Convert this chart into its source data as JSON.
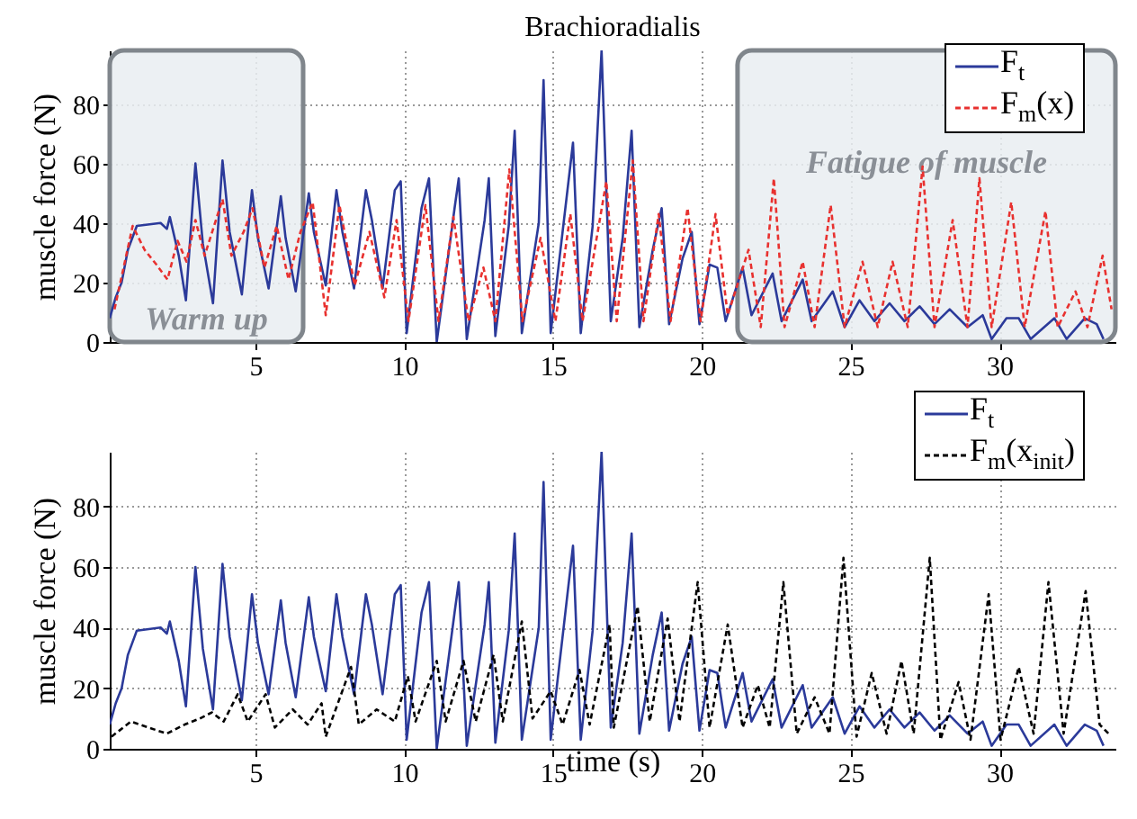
{
  "chart_data": [
    {
      "type": "line",
      "title": "Brachioradialis",
      "ylabel": "muscle force (N)",
      "xlim": [
        0.1,
        33.9
      ],
      "ylim": [
        0,
        98
      ],
      "xticks": [
        5,
        10,
        15,
        20,
        25,
        30
      ],
      "yticks": [
        0,
        20,
        40,
        60,
        80
      ],
      "grid": true,
      "legend": "top right",
      "bands": [
        {
          "axis": "x",
          "from": 0.1,
          "to": 6.6,
          "label": "Warm up",
          "color": "#e9edf1"
        },
        {
          "axis": "x",
          "from": 21.2,
          "to": 33.9,
          "label": "Fatigue of muscle",
          "color": "#e9edf1"
        }
      ],
      "series": [
        {
          "name": "F$_{t}$",
          "color": "#2b3a9a",
          "line_style": "solid",
          "x": [
            0.1,
            0.3,
            0.5,
            0.71,
            1.01,
            1.81,
            2.02,
            2.12,
            2.42,
            2.66,
            2.98,
            3.23,
            3.57,
            3.89,
            4.13,
            4.54,
            4.88,
            5.08,
            5.44,
            5.85,
            6.01,
            6.35,
            6.79,
            6.96,
            7.36,
            7.72,
            7.92,
            8.31,
            8.71,
            8.91,
            9.27,
            9.68,
            9.88,
            10.08,
            10.58,
            10.83,
            11.09,
            11.69,
            11.83,
            12.1,
            12.7,
            12.84,
            13.06,
            13.51,
            13.71,
            13.95,
            14.52,
            14.68,
            14.92,
            15.32,
            15.67,
            15.93,
            16.33,
            16.63,
            16.94,
            17.34,
            17.64,
            17.9,
            18.35,
            18.65,
            18.9,
            19.35,
            19.66,
            19.92,
            20.26,
            20.52,
            20.8,
            21.37,
            21.67,
            22.38,
            22.68,
            23.39,
            23.69,
            24.4,
            24.8,
            25.3,
            25.8,
            26.31,
            26.81,
            27.32,
            27.82,
            28.33,
            28.93,
            29.44,
            29.74,
            30.24,
            30.65,
            31.05,
            31.85,
            32.26,
            32.87,
            33.27,
            33.5
          ],
          "values": [
            8,
            15,
            20,
            31,
            39,
            40,
            38,
            42,
            29,
            14,
            60,
            33,
            13,
            61,
            37,
            16,
            51,
            35,
            18,
            49,
            35,
            17,
            50,
            37,
            19,
            51,
            37,
            18,
            51,
            41,
            18,
            51,
            54,
            3,
            45,
            55,
            0,
            45,
            55,
            1,
            41,
            55,
            2,
            39,
            71,
            3,
            40,
            88,
            3,
            37,
            67,
            3,
            39,
            98,
            7,
            35,
            71,
            5,
            31,
            45,
            6,
            28,
            37,
            6,
            26,
            25,
            7,
            25,
            9,
            23,
            7,
            21,
            7,
            17,
            5,
            14,
            7,
            13,
            7,
            12,
            6,
            11,
            5,
            9,
            1,
            8,
            8,
            1,
            8,
            1,
            8,
            6,
            1
          ]
        },
        {
          "name": "F$_{m}$(x)",
          "color": "#e8312f",
          "line_style": "dashed",
          "x": [
            0.26,
            0.87,
            1.27,
            1.67,
            2.04,
            2.38,
            2.68,
            2.98,
            3.29,
            3.89,
            4.19,
            4.6,
            4.9,
            5.3,
            5.71,
            6.11,
            6.51,
            6.92,
            7.36,
            7.82,
            8.33,
            8.83,
            9.33,
            9.74,
            10.14,
            10.71,
            11.15,
            11.65,
            12.16,
            12.66,
            13.06,
            13.53,
            13.97,
            14.58,
            15.08,
            15.58,
            15.99,
            16.79,
            17.14,
            17.68,
            18.04,
            18.55,
            18.95,
            19.52,
            19.96,
            20.46,
            20.87,
            21.57,
            21.98,
            22.42,
            22.78,
            23.39,
            23.79,
            24.33,
            24.8,
            25.4,
            25.91,
            26.41,
            26.92,
            27.42,
            27.82,
            28.43,
            28.93,
            29.33,
            29.74,
            30.4,
            30.85,
            31.55,
            31.96,
            32.56,
            32.96,
            33.47,
            33.77
          ],
          "values": [
            11,
            39,
            31,
            26,
            21,
            34,
            27,
            41,
            29,
            48,
            29,
            37,
            45,
            25,
            39,
            21,
            37,
            47,
            9,
            46,
            19,
            37,
            15,
            41,
            7,
            46,
            7,
            42,
            7,
            25,
            7,
            58,
            7,
            35,
            7,
            43,
            7,
            54,
            7,
            61,
            7,
            43,
            7,
            45,
            7,
            43,
            9,
            31,
            5,
            55,
            5,
            27,
            5,
            46,
            5,
            27,
            5,
            27,
            5,
            59,
            5,
            41,
            5,
            55,
            5,
            47,
            5,
            44,
            5,
            17,
            5,
            29,
            11
          ]
        }
      ]
    },
    {
      "type": "line",
      "xlabel": "time (s)",
      "ylabel": "muscle force (N)",
      "xlim": [
        0.1,
        33.9
      ],
      "ylim": [
        0,
        98
      ],
      "xticks": [
        5,
        10,
        15,
        20,
        25,
        30
      ],
      "yticks": [
        0,
        20,
        40,
        60,
        80
      ],
      "grid": true,
      "legend": "top right",
      "series": [
        {
          "name": "F$_{t}$",
          "color": "#2b3a9a",
          "line_style": "solid",
          "x": [
            0.1,
            0.3,
            0.5,
            0.71,
            1.01,
            1.81,
            2.02,
            2.12,
            2.42,
            2.66,
            2.98,
            3.23,
            3.57,
            3.89,
            4.13,
            4.54,
            4.88,
            5.08,
            5.44,
            5.85,
            6.01,
            6.35,
            6.79,
            6.96,
            7.36,
            7.72,
            7.92,
            8.31,
            8.71,
            8.91,
            9.27,
            9.68,
            9.88,
            10.08,
            10.58,
            10.83,
            11.09,
            11.69,
            11.83,
            12.1,
            12.7,
            12.84,
            13.06,
            13.51,
            13.71,
            13.95,
            14.52,
            14.68,
            14.92,
            15.32,
            15.67,
            15.93,
            16.33,
            16.63,
            16.94,
            17.34,
            17.64,
            17.9,
            18.35,
            18.65,
            18.9,
            19.35,
            19.66,
            19.92,
            20.26,
            20.52,
            20.8,
            21.37,
            21.67,
            22.38,
            22.68,
            23.39,
            23.69,
            24.4,
            24.8,
            25.3,
            25.8,
            26.31,
            26.81,
            27.32,
            27.82,
            28.33,
            28.93,
            29.44,
            29.74,
            30.24,
            30.65,
            31.05,
            31.85,
            32.26,
            32.87,
            33.27,
            33.5
          ],
          "values": [
            8,
            15,
            20,
            31,
            39,
            40,
            38,
            42,
            29,
            14,
            60,
            33,
            13,
            61,
            37,
            16,
            51,
            35,
            18,
            49,
            35,
            17,
            50,
            37,
            19,
            51,
            37,
            18,
            51,
            41,
            18,
            51,
            54,
            3,
            45,
            55,
            0,
            45,
            55,
            1,
            41,
            55,
            2,
            39,
            71,
            3,
            40,
            88,
            3,
            37,
            67,
            3,
            39,
            98,
            7,
            35,
            71,
            5,
            31,
            45,
            6,
            28,
            37,
            6,
            26,
            25,
            7,
            25,
            9,
            23,
            7,
            21,
            7,
            17,
            5,
            14,
            7,
            13,
            7,
            12,
            6,
            11,
            5,
            9,
            1,
            8,
            8,
            1,
            8,
            1,
            8,
            6,
            1
          ]
        },
        {
          "name": "F$_{m}$(x$_{init}$)",
          "color": "#000000",
          "line_style": "dashed",
          "x": [
            0.16,
            0.81,
            1.41,
            2.02,
            2.62,
            3.13,
            3.53,
            3.93,
            4.4,
            4.74,
            5.34,
            5.65,
            6.25,
            6.75,
            7.22,
            7.36,
            8.21,
            8.47,
            9.07,
            9.68,
            10.12,
            10.38,
            11.09,
            11.39,
            11.99,
            12.4,
            13.0,
            13.31,
            13.95,
            14.31,
            14.92,
            15.32,
            15.89,
            16.23,
            16.9,
            17.04,
            17.84,
            18.25,
            18.85,
            19.25,
            19.86,
            20.26,
            20.87,
            21.37,
            21.88,
            22.28,
            22.74,
            23.19,
            23.79,
            24.29,
            24.76,
            25.2,
            25.71,
            26.21,
            26.71,
            27.12,
            27.66,
            28.02,
            28.63,
            29.03,
            29.64,
            30.04,
            30.65,
            31.15,
            31.65,
            32.16,
            32.9,
            33.37,
            33.67
          ],
          "values": [
            4,
            9,
            7,
            5,
            8,
            10,
            12,
            9,
            18,
            9,
            18,
            7,
            13,
            8,
            15,
            4,
            27,
            8,
            13,
            9,
            24,
            9,
            29,
            9,
            29,
            9,
            31,
            9,
            42,
            10,
            19,
            8,
            26,
            8,
            41,
            7,
            47,
            9,
            43,
            9,
            55,
            7,
            41,
            7,
            21,
            7,
            55,
            5,
            17,
            5,
            63,
            4,
            25,
            5,
            29,
            5,
            63,
            3,
            22,
            3,
            51,
            3,
            27,
            5,
            55,
            5,
            52,
            8,
            5
          ]
        }
      ]
    }
  ]
}
